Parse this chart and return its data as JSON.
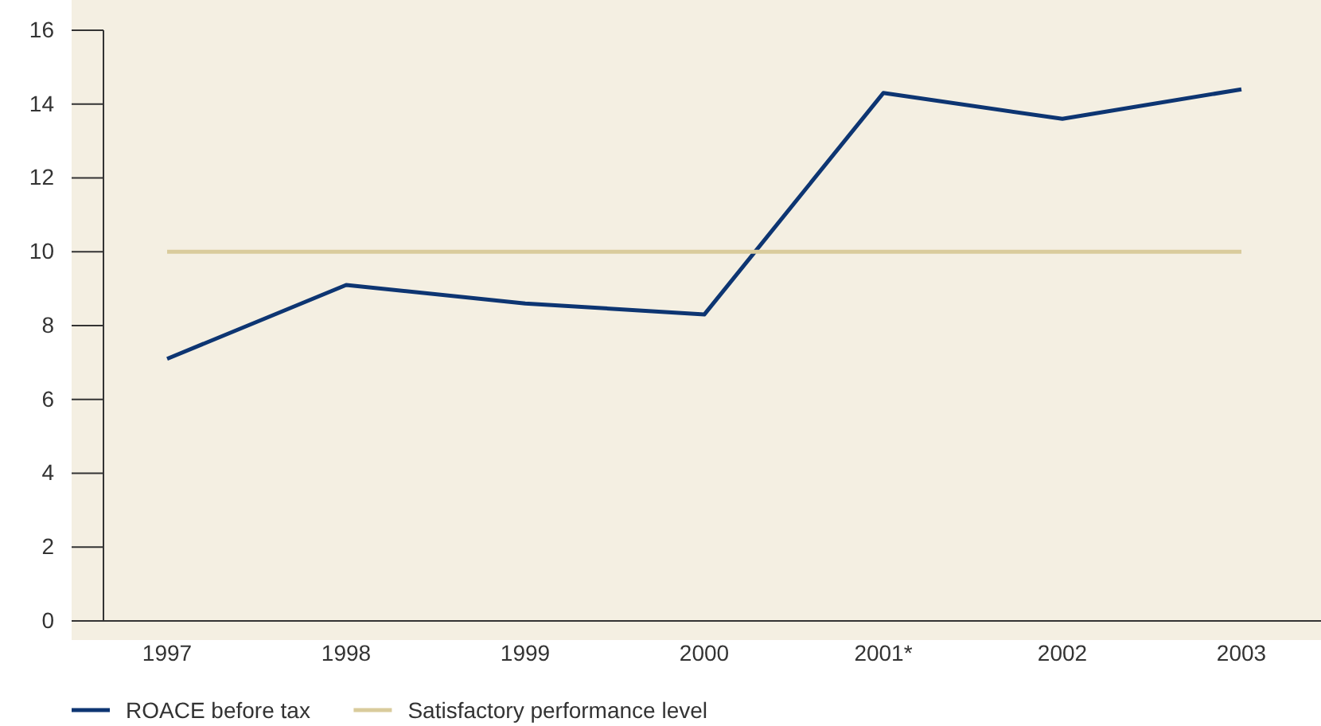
{
  "chart_data": {
    "type": "line",
    "categories": [
      "1997",
      "1998",
      "1999",
      "2000",
      "2001*",
      "2002",
      "2003"
    ],
    "series": [
      {
        "name": "ROACE before tax",
        "color": "#0d3572",
        "values": [
          7.1,
          9.1,
          8.6,
          8.3,
          14.3,
          13.6,
          14.4
        ]
      },
      {
        "name": "Satisfactory performance level",
        "color": "#d9cb9c",
        "values": [
          10,
          10,
          10,
          10,
          10,
          10,
          10
        ]
      }
    ],
    "ylim": [
      0,
      16
    ],
    "yticks": [
      0,
      2,
      4,
      6,
      8,
      10,
      12,
      14,
      16
    ],
    "grid": false,
    "legend": "bottom left",
    "marker": "none",
    "line_style": "solid"
  }
}
